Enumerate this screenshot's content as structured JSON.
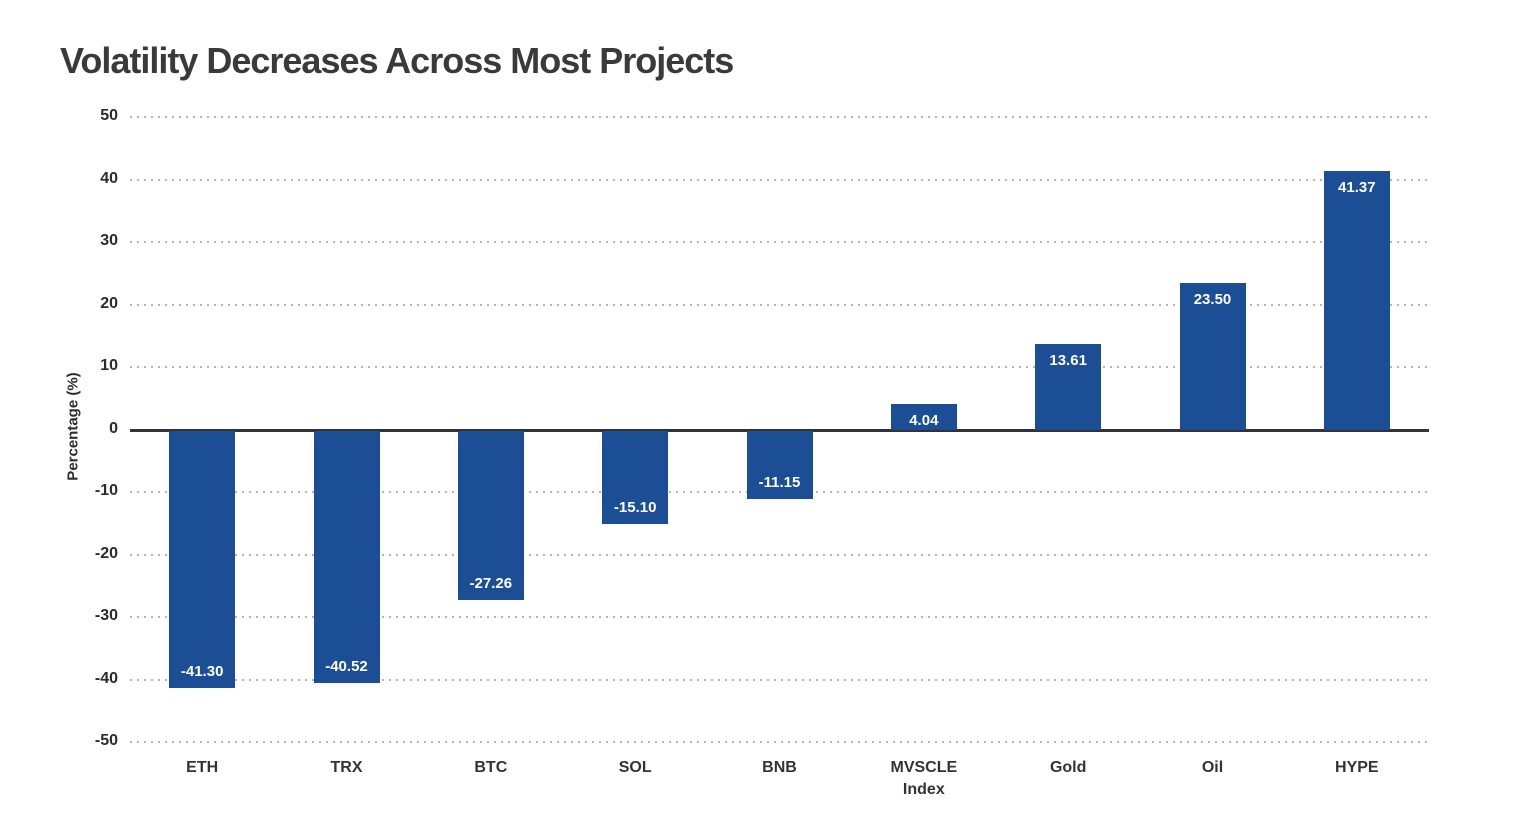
{
  "title": "Volatility Decreases Across Most Projects",
  "colors": {
    "bar": "#1b4e94",
    "zero_line": "#333333",
    "grid": "#b5b5b5",
    "title_text": "#3a3a3a",
    "tick_text": "#2b2b2b",
    "value_label_text": "#ffffff",
    "background": "#ffffff"
  },
  "chart_data": {
    "type": "bar",
    "title": "Volatility Decreases Across Most Projects",
    "categories": [
      "ETH",
      "TRX",
      "BTC",
      "SOL",
      "BNB",
      "MVSCLE Index",
      "Gold",
      "Oil",
      "HYPE"
    ],
    "values": [
      -41.3,
      -40.52,
      -27.26,
      -15.1,
      -11.15,
      4.04,
      13.61,
      23.5,
      41.37
    ],
    "value_labels": [
      "-41.30",
      "-40.52",
      "-27.26",
      "-15.10",
      "-11.15",
      "4.04",
      "13.61",
      "23.50",
      "41.37"
    ],
    "xlabel": "",
    "ylabel": "Percentage (%)",
    "ylim": [
      -50,
      50
    ],
    "yticks": [
      50,
      40,
      30,
      20,
      10,
      0,
      -10,
      -20,
      -30,
      -40,
      -50
    ],
    "grid": "horizontal-dotted",
    "zero_baseline": "solid",
    "legend_position": "none",
    "bar_color": "#1b4e94",
    "value_label_placement": "inside-end"
  }
}
